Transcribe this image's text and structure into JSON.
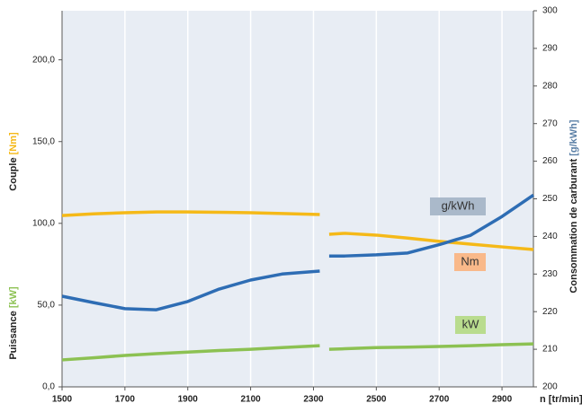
{
  "chart_data": {
    "type": "line",
    "x": [
      1500,
      1600,
      1700,
      1800,
      1900,
      2000,
      2100,
      2200,
      2320,
      2340,
      2350,
      2400,
      2500,
      2600,
      2700,
      2800,
      2900,
      3000
    ],
    "xlim": [
      1500,
      3000
    ],
    "xticks": [
      1500,
      1700,
      1900,
      2100,
      2300,
      2500,
      2700,
      2900
    ],
    "xlabel": "n [tr/min]",
    "ylim": [
      0,
      230
    ],
    "yticks": [
      {
        "value": 0,
        "label": "0,0"
      },
      {
        "value": 50,
        "label": "50,0"
      },
      {
        "value": 100,
        "label": "100,0"
      },
      {
        "value": 150,
        "label": "150,0"
      },
      {
        "value": 200,
        "label": "200,0"
      }
    ],
    "ylabel_upper": {
      "name": "Couple",
      "unit": "[Nm]"
    },
    "ylabel_lower": {
      "name": "Puissance",
      "unit": "[kW]"
    },
    "y2lim": [
      200,
      300
    ],
    "y2ticks": [
      200,
      210,
      220,
      230,
      240,
      250,
      260,
      270,
      280,
      290,
      300
    ],
    "y2label": {
      "name": "Consommation de carburant",
      "unit": "[g/kWh]"
    },
    "grid": true,
    "series": [
      {
        "name": "Nm",
        "color": "#f5b918",
        "axis": "y",
        "values": [
          104.8,
          105.8,
          106.5,
          107,
          107,
          106.8,
          106.5,
          106,
          105.4,
          null,
          93.3,
          93.9,
          92.8,
          91,
          89,
          87.3,
          85.6,
          84
        ]
      },
      {
        "name": "kW",
        "color": "#8cc152",
        "axis": "y",
        "values": [
          16.5,
          17.8,
          19.2,
          20.3,
          21.3,
          22.2,
          23,
          24,
          25.2,
          null,
          23,
          23.3,
          24,
          24.3,
          24.7,
          25.2,
          25.8,
          26.3
        ]
      },
      {
        "name": "g/kWh",
        "color": "#2e6db4",
        "axis": "y2",
        "values": [
          224.1,
          222.4,
          220.8,
          220.5,
          222.7,
          226,
          228.4,
          230,
          230.8,
          null,
          234.8,
          234.8,
          235.1,
          235.6,
          237.8,
          240.3,
          245.3,
          251
        ]
      }
    ]
  }
}
